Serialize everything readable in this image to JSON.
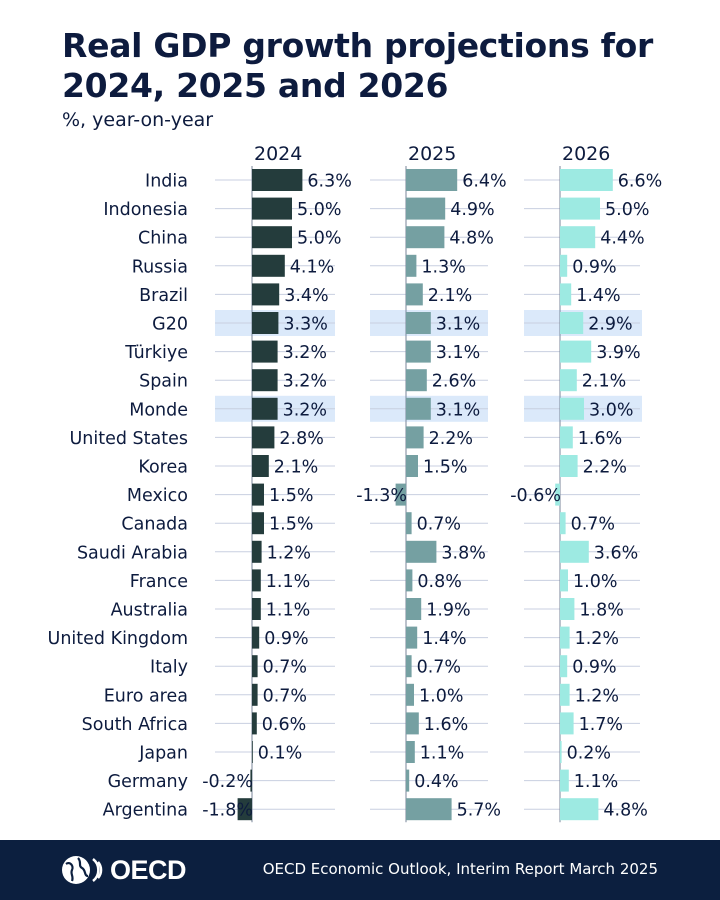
{
  "header": {
    "title_line1": "Real GDP growth projections for",
    "title_line2": "2024, 2025 and 2026",
    "subtitle": "%, year-on-year"
  },
  "footer": {
    "logo_text": "OECD",
    "source": "OECD Economic Outlook, Interim Report March 2025"
  },
  "colors": {
    "s2024": "#243c3c",
    "s2025": "#75a0a2",
    "s2026": "#9deae2",
    "highlight": "#dbe9fa",
    "gridline": "#c8cfe0",
    "text": "#0d1b3e"
  },
  "chart_data": {
    "type": "bar",
    "orientation": "horizontal",
    "categories": [
      "India",
      "Indonesia",
      "China",
      "Russia",
      "Brazil",
      "G20",
      "Türkiye",
      "Spain",
      "Monde",
      "United States",
      "Korea",
      "Mexico",
      "Canada",
      "Saudi Arabia",
      "France",
      "Australia",
      "United Kingdom",
      "Italy",
      "Euro area",
      "South Africa",
      "Japan",
      "Germany",
      "Argentina"
    ],
    "highlighted": [
      "G20",
      "Monde"
    ],
    "series": [
      {
        "name": "2024",
        "values": [
          6.3,
          5.0,
          5.0,
          4.1,
          3.4,
          3.3,
          3.2,
          3.2,
          3.2,
          2.8,
          2.1,
          1.5,
          1.5,
          1.2,
          1.1,
          1.1,
          0.9,
          0.7,
          0.7,
          0.6,
          0.1,
          -0.2,
          -1.8
        ],
        "labels": [
          "6.3%",
          "5.0%",
          "5.0%",
          "4.1%",
          "3.4%",
          "3.3%",
          "3.2%",
          "3.2%",
          "3.2%",
          "2.8%",
          "2.1%",
          "1.5%",
          "1.5%",
          "1.2%",
          "1.1%",
          "1.1%",
          "0.9%",
          "0.7%",
          "0.7%",
          "0.6%",
          "0.1%",
          "-0.2%",
          "-1.8%"
        ]
      },
      {
        "name": "2025",
        "values": [
          6.4,
          4.9,
          4.8,
          1.3,
          2.1,
          3.1,
          3.1,
          2.6,
          3.1,
          2.2,
          1.5,
          -1.3,
          0.7,
          3.8,
          0.8,
          1.9,
          1.4,
          0.7,
          1.0,
          1.6,
          1.1,
          0.4,
          5.7
        ],
        "labels": [
          "6.4%",
          "4.9%",
          "4.8%",
          "1.3%",
          "2.1%",
          "3.1%",
          "3.1%",
          "2.6%",
          "3.1%",
          "2.2%",
          "1.5%",
          "-1.3%",
          "0.7%",
          "3.8%",
          "0.8%",
          "1.9%",
          "1.4%",
          "0.7%",
          "1.0%",
          "1.6%",
          "1.1%",
          "0.4%",
          "5.7%"
        ]
      },
      {
        "name": "2026",
        "values": [
          6.6,
          5.0,
          4.4,
          0.9,
          1.4,
          2.9,
          3.9,
          2.1,
          3.0,
          1.6,
          2.2,
          -0.6,
          0.7,
          3.6,
          1.0,
          1.8,
          1.2,
          0.9,
          1.2,
          1.7,
          0.2,
          1.1,
          4.8
        ],
        "labels": [
          "6.6%",
          "5.0%",
          "4.4%",
          "0.9%",
          "1.4%",
          "2.9%",
          "3.9%",
          "2.1%",
          "3.0%",
          "1.6%",
          "2.2%",
          "-0.6%",
          "0.7%",
          "3.6%",
          "1.0%",
          "1.8%",
          "1.2%",
          "0.9%",
          "1.2%",
          "1.7%",
          "0.2%",
          "1.1%",
          "4.8%"
        ]
      }
    ]
  }
}
